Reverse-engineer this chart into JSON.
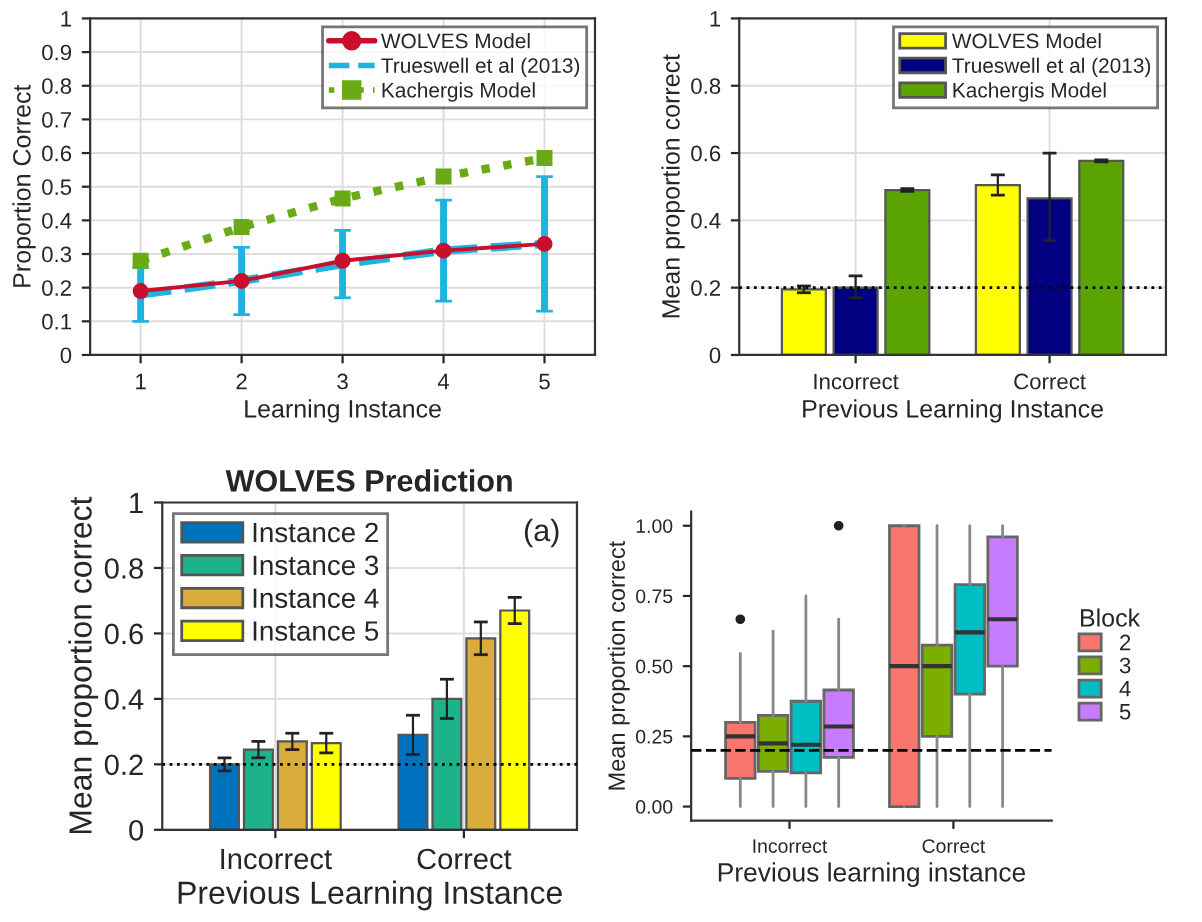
{
  "chart_data": [
    {
      "type": "line",
      "xlabel": "Learning Instance",
      "ylabel": "Proportion Correct",
      "x": [
        1,
        2,
        3,
        4,
        5
      ],
      "xlim": [
        0.5,
        5.5
      ],
      "xticks": [
        1,
        2,
        3,
        4,
        5
      ],
      "ylim": [
        0,
        1
      ],
      "yticks": [
        0,
        0.1,
        0.2,
        0.3,
        0.4,
        0.5,
        0.6,
        0.7,
        0.8,
        0.9,
        1
      ],
      "grid": true,
      "legend": "top right",
      "series": [
        {
          "name": "WOLVES Model",
          "color": "#c8102e",
          "values": [
            0.19,
            0.22,
            0.28,
            0.31,
            0.33
          ],
          "marker": "circle",
          "line_style": "solid"
        },
        {
          "name": "Trueswell et al (2013)",
          "color": "#1fb4e0",
          "values": [
            0.18,
            0.22,
            0.27,
            0.31,
            0.33
          ],
          "marker": "none",
          "line_style": "dashed",
          "errors": [
            [
              0.1,
              0.26
            ],
            [
              0.12,
              0.32
            ],
            [
              0.17,
              0.37
            ],
            [
              0.16,
              0.46
            ],
            [
              0.13,
              0.53
            ]
          ]
        },
        {
          "name": "Kachergis Model",
          "color": "#6aaa14",
          "values": [
            0.28,
            0.38,
            0.465,
            0.53,
            0.585
          ],
          "marker": "square",
          "line_style": "dotted"
        }
      ]
    },
    {
      "type": "bar",
      "xlabel": "Previous Learning Instance",
      "ylabel": "Mean proportion correct",
      "categories": [
        "Incorrect",
        "Correct"
      ],
      "ylim": [
        0,
        1
      ],
      "yticks": [
        0,
        0.2,
        0.4,
        0.6,
        0.8,
        1
      ],
      "grid": true,
      "legend": "top right",
      "ref_lines": [
        {
          "axis": "y",
          "value": 0.2,
          "label": null,
          "line_style": "dotted",
          "color": "#000000"
        }
      ],
      "series": [
        {
          "name": "WOLVES Model",
          "color": "#ffff00",
          "values": [
            0.195,
            0.505
          ],
          "errors": [
            0.01,
            0.03
          ]
        },
        {
          "name": "Trueswell et al (2013)",
          "color": "#000080",
          "values": [
            0.2,
            0.465
          ],
          "errors": [
            [
              0.17,
              0.235
            ],
            [
              0.34,
              0.6
            ]
          ]
        },
        {
          "name": "Kachergis Model",
          "color": "#5aa300",
          "values": [
            0.49,
            0.577
          ],
          "errors": [
            0.004,
            0.003
          ]
        }
      ]
    },
    {
      "type": "bar",
      "title": "WOLVES Prediction",
      "annotations": [
        "(a)"
      ],
      "xlabel": "Previous Learning Instance",
      "ylabel": "Mean proportion correct",
      "categories": [
        "Incorrect",
        "Correct"
      ],
      "ylim": [
        0,
        1
      ],
      "yticks": [
        0,
        0.2,
        0.4,
        0.6,
        0.8,
        1
      ],
      "grid": true,
      "legend": "top left",
      "ref_lines": [
        {
          "axis": "y",
          "value": 0.2,
          "label": null,
          "line_style": "dotted",
          "color": "#000000"
        }
      ],
      "series": [
        {
          "name": "Instance 2",
          "color": "#0072bd",
          "values": [
            0.2,
            0.29
          ],
          "errors": [
            0.02,
            0.06
          ]
        },
        {
          "name": "Instance 3",
          "color": "#1db38a",
          "values": [
            0.245,
            0.4
          ],
          "errors": [
            0.025,
            0.06
          ]
        },
        {
          "name": "Instance 4",
          "color": "#d9ac3c",
          "values": [
            0.27,
            0.585
          ],
          "errors": [
            0.025,
            0.05
          ]
        },
        {
          "name": "Instance 5",
          "color": "#ffff00",
          "values": [
            0.265,
            0.67
          ],
          "errors": [
            0.03,
            0.04
          ]
        }
      ]
    },
    {
      "type": "box",
      "xlabel": "Previous learning instance",
      "ylabel": "Mean proportion correct",
      "categories": [
        "Incorrect",
        "Correct"
      ],
      "ylim": [
        -0.05,
        1.05
      ],
      "yticks": [
        {
          "value": 0,
          "label": "0.00"
        },
        {
          "value": 0.25,
          "label": "0.25"
        },
        {
          "value": 0.5,
          "label": "0.50"
        },
        {
          "value": 0.75,
          "label": "0.75"
        },
        {
          "value": 1,
          "label": "1.00"
        }
      ],
      "legend": "right",
      "legend_title": "Block",
      "ref_lines": [
        {
          "axis": "y",
          "value": 0.2,
          "label": null,
          "line_style": "dashed",
          "color": "#000000"
        }
      ],
      "series": [
        {
          "name": "2",
          "color": "#f8766d",
          "boxes": [
            {
              "low": 0,
              "q1": 0.1,
              "median": 0.25,
              "q3": 0.3,
              "high": 0.545,
              "outliers": [
                0.667
              ]
            },
            {
              "low": 0,
              "q1": 0,
              "median": 0.5,
              "q3": 1.0,
              "high": 1.0
            }
          ]
        },
        {
          "name": "3",
          "color": "#7cae00",
          "boxes": [
            {
              "low": 0,
              "q1": 0.125,
              "median": 0.225,
              "q3": 0.325,
              "high": 0.625
            },
            {
              "low": 0,
              "q1": 0.25,
              "median": 0.5,
              "q3": 0.575,
              "high": 1.0
            }
          ]
        },
        {
          "name": "4",
          "color": "#00bfc4",
          "boxes": [
            {
              "low": 0,
              "q1": 0.12,
              "median": 0.22,
              "q3": 0.375,
              "high": 0.75
            },
            {
              "low": 0,
              "q1": 0.4,
              "median": 0.62,
              "q3": 0.79,
              "high": 1.0
            }
          ]
        },
        {
          "name": "5",
          "color": "#c77cff",
          "boxes": [
            {
              "low": 0,
              "q1": 0.175,
              "median": 0.285,
              "q3": 0.415,
              "high": 0.667,
              "outliers": [
                1.0
              ]
            },
            {
              "low": 0,
              "q1": 0.5,
              "median": 0.667,
              "q3": 0.96,
              "high": 1.0
            }
          ]
        }
      ]
    }
  ]
}
